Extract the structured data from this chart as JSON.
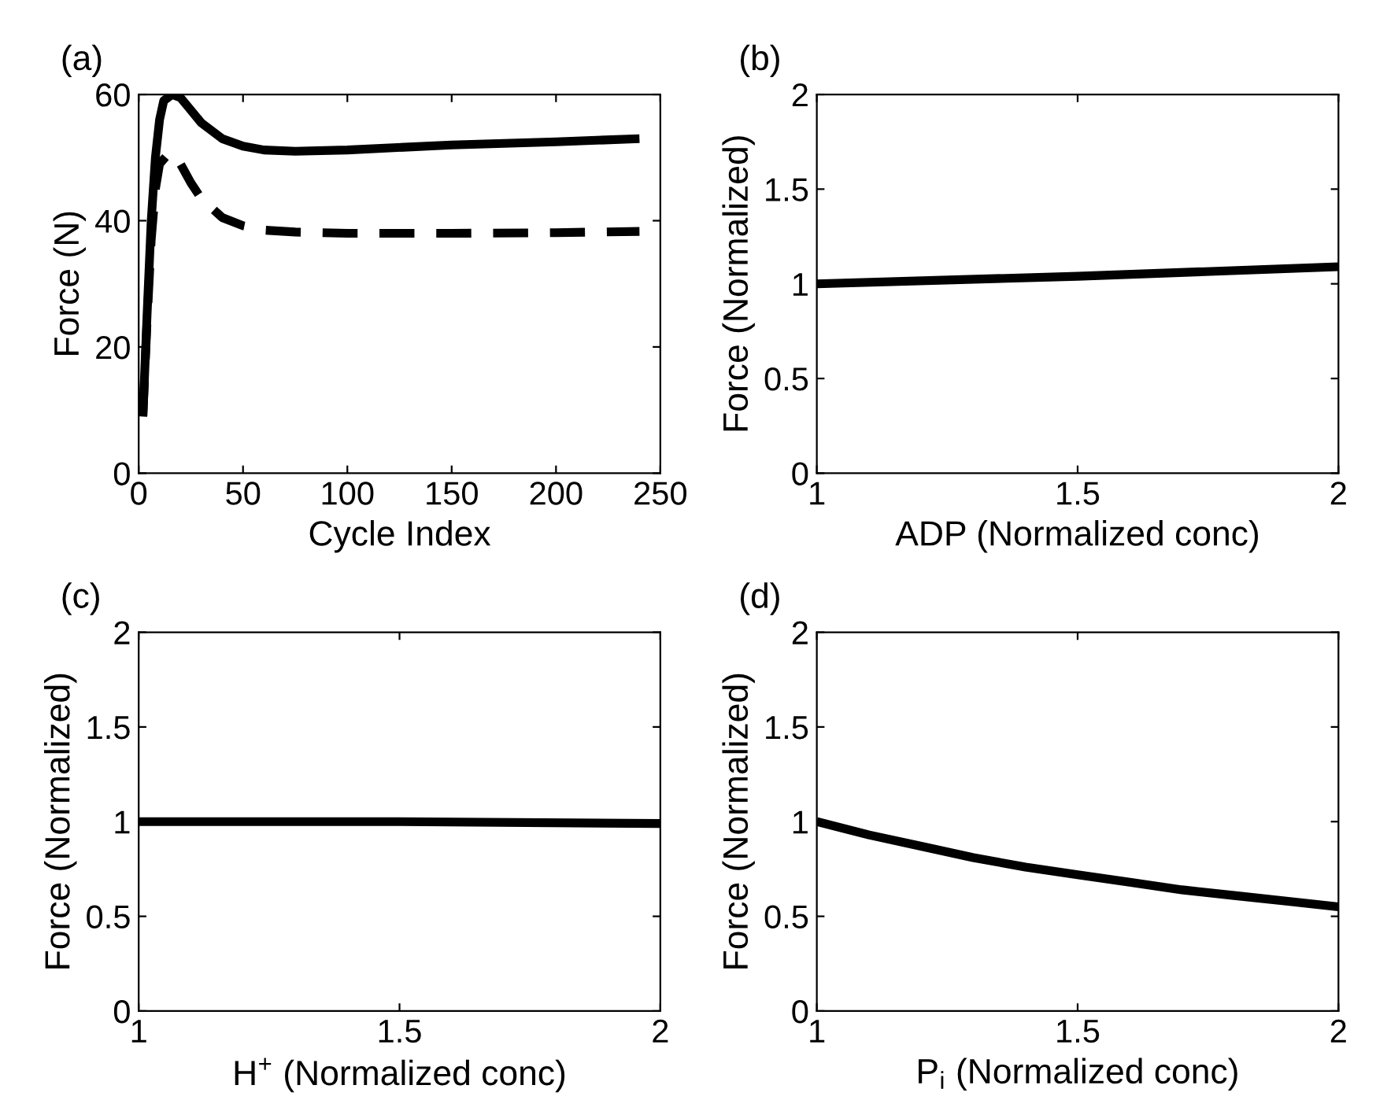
{
  "chart_data": [
    {
      "type": "line",
      "title": "(a)",
      "xlabel": "Cycle Index",
      "ylabel": "Force (N)",
      "xlim": [
        0,
        250
      ],
      "xticks": [
        0,
        50,
        100,
        150,
        200,
        250
      ],
      "ylim": [
        0,
        60
      ],
      "yticks": [
        0,
        20,
        40,
        60
      ],
      "grid": false,
      "series": [
        {
          "color": "#000000",
          "line_style": "solid",
          "x": [
            2,
            4,
            6,
            8,
            10,
            12,
            16,
            20,
            25,
            30,
            40,
            50,
            60,
            75,
            100,
            150,
            200,
            240
          ],
          "values": [
            9,
            25,
            40,
            50,
            56,
            59,
            60,
            59.5,
            57.5,
            55.5,
            53,
            51.8,
            51.2,
            51,
            51.2,
            52,
            52.5,
            53
          ]
        },
        {
          "color": "#000000",
          "line_style": "dashed",
          "x": [
            2,
            4,
            6,
            8,
            10,
            14,
            17,
            20,
            25,
            30,
            40,
            50,
            60,
            75,
            100,
            150,
            200,
            240
          ],
          "values": [
            9,
            24,
            37,
            45,
            49,
            50.5,
            50.5,
            49,
            46,
            43.5,
            40.5,
            39.2,
            38.5,
            38.2,
            38,
            38,
            38.1,
            38.3
          ]
        }
      ]
    },
    {
      "type": "line",
      "title": "(b)",
      "xlabel": "ADP (Normalized conc)",
      "ylabel": "Force (Normalized)",
      "xlim": [
        1,
        2
      ],
      "xticks": [
        1,
        1.5,
        2
      ],
      "ylim": [
        0,
        2
      ],
      "yticks": [
        0,
        0.5,
        1,
        1.5,
        2
      ],
      "grid": false,
      "series": [
        {
          "color": "#000000",
          "line_style": "solid",
          "x": [
            1,
            1.5,
            2
          ],
          "values": [
            1,
            1.04,
            1.09
          ]
        }
      ]
    },
    {
      "type": "line",
      "title": "(c)",
      "xlabel": "H$^{+}$ (Normalized conc)",
      "ylabel": "Force (Normalized)",
      "xlim": [
        1,
        2
      ],
      "xticks": [
        1,
        1.5,
        2
      ],
      "ylim": [
        0,
        2
      ],
      "yticks": [
        0,
        0.5,
        1,
        1.5,
        2
      ],
      "grid": false,
      "series": [
        {
          "color": "#000000",
          "line_style": "solid",
          "x": [
            1,
            1.5,
            2
          ],
          "values": [
            1,
            1,
            0.99
          ]
        }
      ]
    },
    {
      "type": "line",
      "title": "(d)",
      "xlabel": "P$_{i}$ (Normalized conc)",
      "ylabel": "Force (Normalized)",
      "xlim": [
        1,
        2
      ],
      "xticks": [
        1,
        1.5,
        2
      ],
      "ylim": [
        0,
        2
      ],
      "yticks": [
        0,
        0.5,
        1,
        1.5,
        2
      ],
      "grid": false,
      "series": [
        {
          "color": "#000000",
          "line_style": "solid",
          "x": [
            1,
            1.1,
            1.2,
            1.3,
            1.4,
            1.5,
            1.6,
            1.7,
            1.8,
            1.9,
            2
          ],
          "values": [
            1,
            0.93,
            0.87,
            0.81,
            0.76,
            0.72,
            0.68,
            0.64,
            0.61,
            0.58,
            0.55
          ]
        }
      ]
    }
  ]
}
